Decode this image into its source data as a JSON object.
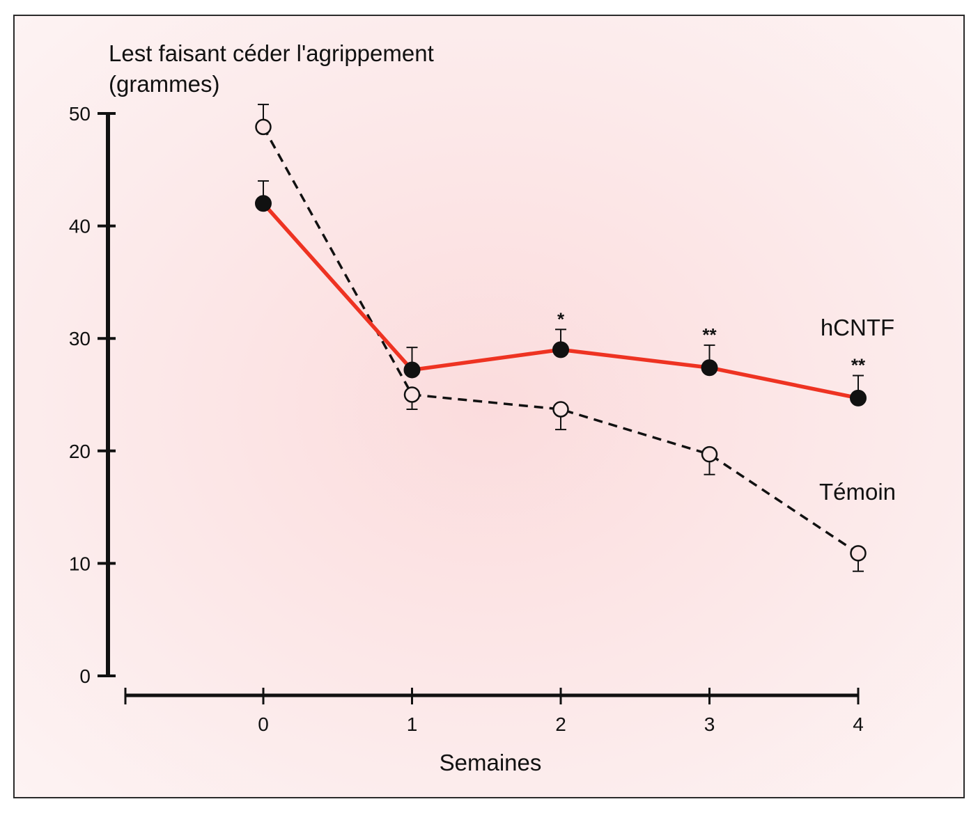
{
  "chart_data": {
    "type": "line",
    "title": "",
    "ylabel_line1": "Lest faisant céder l'agrippement",
    "ylabel_line2": "(grammes)",
    "xlabel": "Semaines",
    "x": [
      0,
      1,
      2,
      3,
      4
    ],
    "xticks": [
      "0",
      "1",
      "2",
      "3",
      "4"
    ],
    "yticks": [
      "0",
      "10",
      "20",
      "30",
      "40",
      "50"
    ],
    "ylim": [
      0,
      50
    ],
    "grid": false,
    "series": [
      {
        "name": "hCNTF",
        "style": "solid",
        "marker": "filled-circle",
        "color": "#ee3322",
        "values": [
          42,
          27.2,
          29.0,
          27.4,
          24.7
        ],
        "error_up": [
          2.0,
          2.0,
          1.8,
          2.0,
          2.0
        ],
        "significance": [
          "",
          "",
          "*",
          "**",
          "**"
        ]
      },
      {
        "name": "Témoin",
        "style": "dashed",
        "marker": "open-circle",
        "color": "#111111",
        "values": [
          48.8,
          25.0,
          23.7,
          19.7,
          10.9
        ],
        "error_up": [
          2.0,
          0,
          0,
          0,
          0
        ],
        "error_down": [
          0,
          1.3,
          1.8,
          1.8,
          1.6
        ]
      }
    ],
    "colors": {
      "background_center": "#fbdfe0",
      "background_edge": "#fdf2f2"
    }
  }
}
